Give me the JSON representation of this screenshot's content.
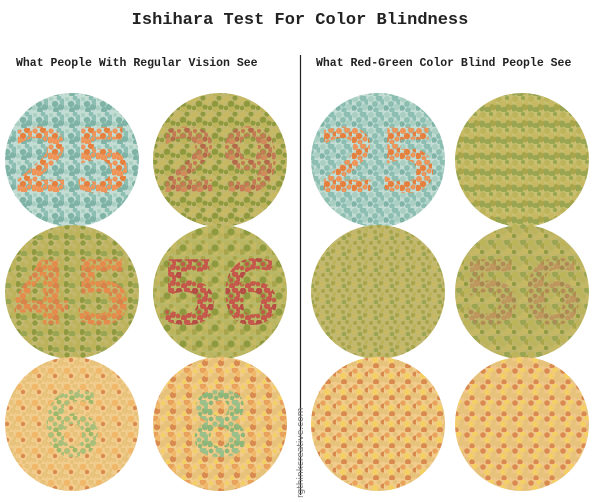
{
  "header": {
    "title": "Ishihara Test For Color Blindness"
  },
  "panels": [
    {
      "heading": "What People With Regular Vision See",
      "plates": [
        "25",
        "29",
        "45",
        "56",
        "6",
        "8"
      ]
    },
    {
      "heading": "What Red-Green Color Blind People See",
      "plates": [
        "25",
        null,
        null,
        "56",
        null,
        null
      ]
    }
  ],
  "watermark": "rgthinkcreative.com"
}
